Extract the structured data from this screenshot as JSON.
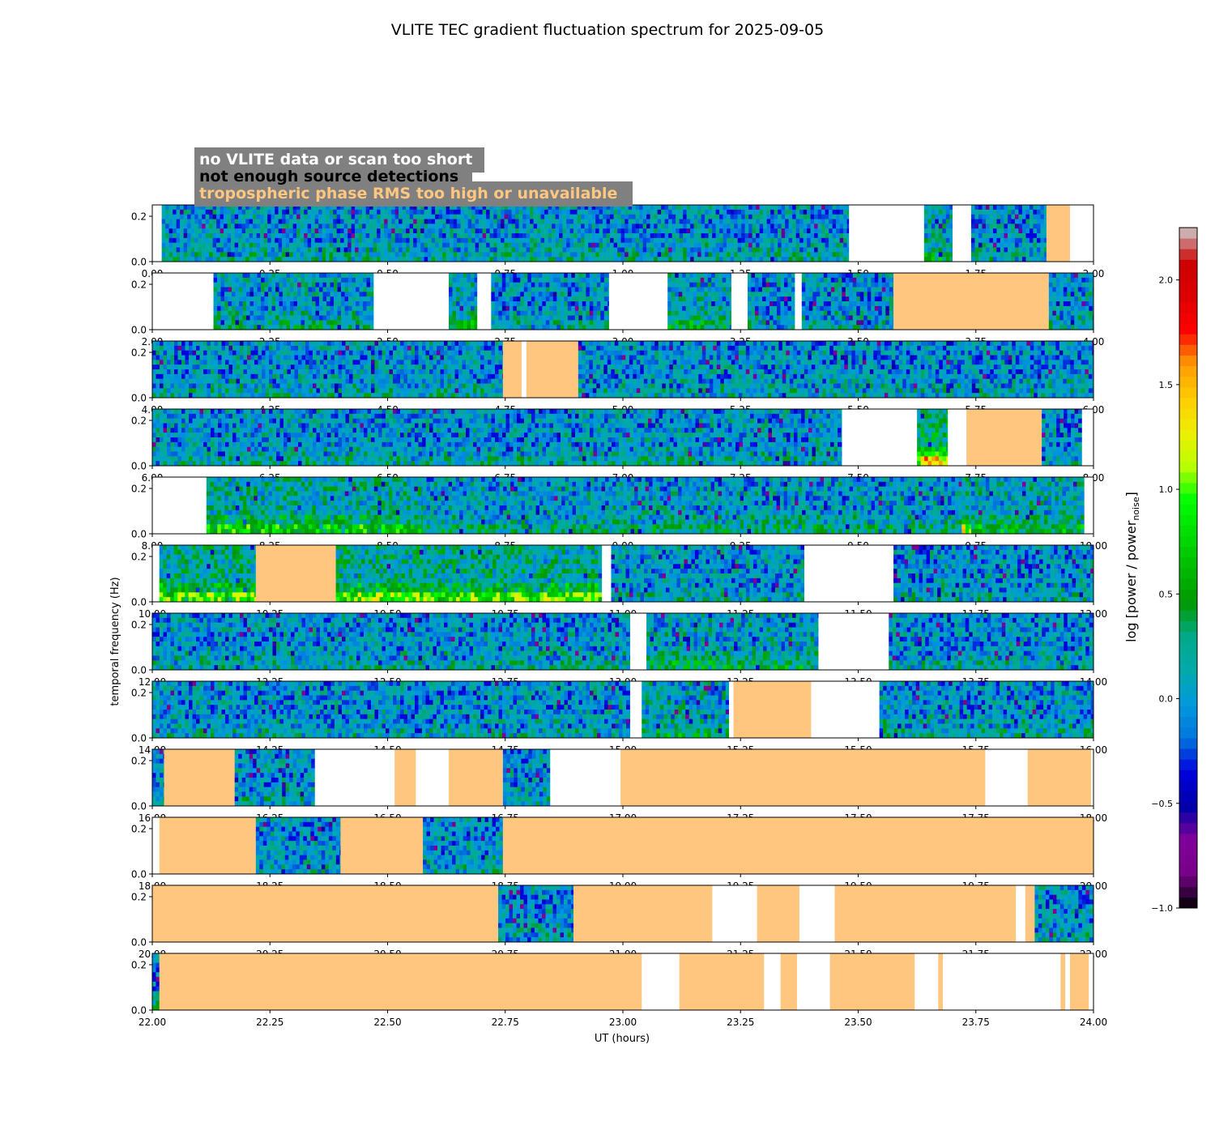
{
  "chart_data": {
    "type": "heatmap",
    "title": "VLITE TEC gradient fluctuation spectrum for 2025-09-05",
    "xlabel": "UT (hours)",
    "ylabel": "temporal frequency (Hz)",
    "ylim": [
      0,
      0.25
    ],
    "yticks": [
      "0.0",
      "0.2"
    ],
    "colorbar": {
      "label": "log [power / power",
      "label_sub": "noise",
      "label_end": "]",
      "range": [
        -1.0,
        2.25
      ],
      "ticks": [
        "−1.0",
        "−0.5",
        "0.0",
        "0.5",
        "1.0",
        "1.5",
        "2.0"
      ],
      "tick_values": [
        -1.0,
        -0.5,
        0.0,
        0.5,
        1.0,
        1.5,
        2.0
      ],
      "colormap": "nipy_spectral-like (black-purple-blue-cyan-green-yellow-red-grey)"
    },
    "legend": {
      "placement": "top-left",
      "box_color": "#808080",
      "entries": [
        {
          "text": "no VLITE data or scan too short",
          "color": "#ffffff",
          "meaning": "white"
        },
        {
          "text": "not enough source detections",
          "color": "#000000",
          "meaning": "black"
        },
        {
          "text": "tropospheric phase RMS too high or unavailable",
          "color": "#ffc680",
          "meaning": "orange"
        }
      ]
    },
    "flag_colors": {
      "no_data": "#ffffff",
      "tropo": "#ffc680"
    },
    "panels": [
      {
        "range": [
          0,
          2
        ],
        "ticks": [
          "0.00",
          "0.25",
          "0.50",
          "0.75",
          "1.00",
          "1.25",
          "1.50",
          "1.75",
          "2.00"
        ],
        "segments": [
          [
            0,
            0.02,
            "none"
          ],
          [
            0.02,
            1.48,
            "data",
            0.1
          ],
          [
            1.48,
            1.64,
            "none"
          ],
          [
            1.64,
            1.7,
            "data",
            0.22
          ],
          [
            1.7,
            1.74,
            "none"
          ],
          [
            1.74,
            1.9,
            "data",
            0.08
          ],
          [
            1.9,
            1.95,
            "tropo"
          ],
          [
            1.95,
            2,
            "none"
          ]
        ]
      },
      {
        "range": [
          2,
          4
        ],
        "ticks": [
          "2.00",
          "2.25",
          "2.50",
          "2.75",
          "3.00",
          "3.25",
          "3.50",
          "3.75",
          "4.00"
        ],
        "segments": [
          [
            2,
            2.13,
            "none"
          ],
          [
            2.13,
            2.47,
            "data",
            0.15
          ],
          [
            2.47,
            2.63,
            "none"
          ],
          [
            2.63,
            2.69,
            "data",
            0.22
          ],
          [
            2.69,
            2.72,
            "none"
          ],
          [
            2.72,
            2.97,
            "data",
            0.1
          ],
          [
            2.97,
            3.095,
            "none"
          ],
          [
            3.095,
            3.23,
            "data",
            0.2
          ],
          [
            3.23,
            3.265,
            "none"
          ],
          [
            3.265,
            3.365,
            "data",
            0.06
          ],
          [
            3.365,
            3.38,
            "none"
          ],
          [
            3.38,
            3.575,
            "data",
            0.08
          ],
          [
            3.575,
            3.905,
            "tropo"
          ],
          [
            3.905,
            4,
            "data",
            0.1
          ]
        ]
      },
      {
        "range": [
          4,
          6
        ],
        "ticks": [
          "4.00",
          "4.25",
          "4.50",
          "4.75",
          "5.00",
          "5.25",
          "5.50",
          "5.75",
          "6.00"
        ],
        "segments": [
          [
            4,
            4.745,
            "data",
            0.1
          ],
          [
            4.745,
            4.785,
            "tropo"
          ],
          [
            4.785,
            4.795,
            "none"
          ],
          [
            4.795,
            4.905,
            "tropo"
          ],
          [
            4.905,
            6,
            "data",
            0.08
          ]
        ]
      },
      {
        "range": [
          6,
          8
        ],
        "ticks": [
          "6.00",
          "6.25",
          "6.50",
          "6.75",
          "7.00",
          "7.25",
          "7.50",
          "7.75",
          "8.00"
        ],
        "segments": [
          [
            6,
            7.465,
            "data",
            0.1
          ],
          [
            7.465,
            7.625,
            "none"
          ],
          [
            7.625,
            7.69,
            "data",
            0.65
          ],
          [
            7.69,
            7.73,
            "none"
          ],
          [
            7.73,
            7.89,
            "tropo"
          ],
          [
            7.89,
            7.975,
            "data",
            0.08
          ],
          [
            7.975,
            8,
            "none"
          ]
        ]
      },
      {
        "range": [
          8,
          10
        ],
        "ticks": [
          "8.00",
          "8.25",
          "8.50",
          "8.75",
          "9.00",
          "9.25",
          "9.50",
          "9.75",
          "10.00"
        ],
        "segments": [
          [
            8,
            8.115,
            "none"
          ],
          [
            8.115,
            8.575,
            "data",
            0.35
          ],
          [
            8.575,
            9.72,
            "data",
            0.15
          ],
          [
            9.72,
            9.74,
            "data",
            0.55
          ],
          [
            9.74,
            9.98,
            "data",
            0.25
          ],
          [
            9.98,
            10,
            "none"
          ]
        ]
      },
      {
        "range": [
          10,
          12
        ],
        "ticks": [
          "10.00",
          "10.25",
          "10.50",
          "10.75",
          "11.00",
          "11.25",
          "11.50",
          "11.75",
          "12.00"
        ],
        "segments": [
          [
            10,
            10.015,
            "none"
          ],
          [
            10.015,
            10.22,
            "data",
            0.45
          ],
          [
            10.22,
            10.39,
            "tropo"
          ],
          [
            10.39,
            10.955,
            "data",
            0.45
          ],
          [
            10.955,
            10.975,
            "none"
          ],
          [
            10.975,
            11.385,
            "data",
            0.08
          ],
          [
            11.385,
            11.575,
            "none"
          ],
          [
            11.575,
            12,
            "data",
            0.08
          ]
        ]
      },
      {
        "range": [
          12,
          14
        ],
        "ticks": [
          "12.00",
          "12.25",
          "12.50",
          "12.75",
          "13.00",
          "13.25",
          "13.50",
          "13.75",
          "14.00"
        ],
        "segments": [
          [
            12,
            13.015,
            "data",
            0.1
          ],
          [
            13.015,
            13.05,
            "none"
          ],
          [
            13.05,
            13.415,
            "data",
            0.2
          ],
          [
            13.415,
            13.565,
            "none"
          ],
          [
            13.565,
            14,
            "data",
            0.08
          ]
        ]
      },
      {
        "range": [
          14,
          16
        ],
        "ticks": [
          "14.00",
          "14.25",
          "14.50",
          "14.75",
          "15.00",
          "15.25",
          "15.50",
          "15.75",
          "16.00"
        ],
        "segments": [
          [
            14,
            15.015,
            "data",
            0.08
          ],
          [
            15.015,
            15.04,
            "none"
          ],
          [
            15.04,
            15.225,
            "data",
            0.2
          ],
          [
            15.225,
            15.235,
            "none"
          ],
          [
            15.235,
            15.4,
            "tropo"
          ],
          [
            15.4,
            15.545,
            "none"
          ],
          [
            15.545,
            16,
            "data",
            0.1
          ]
        ]
      },
      {
        "range": [
          16,
          18
        ],
        "ticks": [
          "16.00",
          "16.25",
          "16.50",
          "16.75",
          "17.00",
          "17.25",
          "17.50",
          "17.75",
          "18.00"
        ],
        "segments": [
          [
            16,
            16.025,
            "data",
            0.1
          ],
          [
            16.025,
            16.175,
            "tropo"
          ],
          [
            16.175,
            16.345,
            "data",
            0.08
          ],
          [
            16.345,
            16.515,
            "none"
          ],
          [
            16.515,
            16.56,
            "tropo"
          ],
          [
            16.56,
            16.63,
            "none"
          ],
          [
            16.63,
            16.745,
            "tropo"
          ],
          [
            16.745,
            16.845,
            "data",
            0.08
          ],
          [
            16.845,
            16.995,
            "none"
          ],
          [
            16.995,
            17.77,
            "tropo"
          ],
          [
            17.77,
            17.86,
            "none"
          ],
          [
            17.86,
            17.995,
            "tropo"
          ],
          [
            17.995,
            18,
            "none"
          ]
        ]
      },
      {
        "range": [
          18,
          20
        ],
        "ticks": [
          "18.00",
          "18.25",
          "18.50",
          "18.75",
          "19.00",
          "19.25",
          "19.50",
          "19.75",
          "20.00"
        ],
        "segments": [
          [
            18,
            18.015,
            "none"
          ],
          [
            18.015,
            18.22,
            "tropo"
          ],
          [
            18.22,
            18.4,
            "data",
            0.08
          ],
          [
            18.4,
            18.575,
            "tropo"
          ],
          [
            18.575,
            18.745,
            "data",
            0.08
          ],
          [
            18.745,
            20,
            "tropo"
          ]
        ]
      },
      {
        "range": [
          20,
          22
        ],
        "ticks": [
          "20.00",
          "20.25",
          "20.50",
          "20.75",
          "21.00",
          "21.25",
          "21.50",
          "21.75",
          "22.00"
        ],
        "segments": [
          [
            20,
            20.735,
            "tropo"
          ],
          [
            20.735,
            20.895,
            "data",
            0.06
          ],
          [
            20.895,
            21.19,
            "tropo"
          ],
          [
            21.19,
            21.285,
            "none"
          ],
          [
            21.285,
            21.375,
            "tropo"
          ],
          [
            21.375,
            21.45,
            "none"
          ],
          [
            21.45,
            21.835,
            "tropo"
          ],
          [
            21.835,
            21.855,
            "none"
          ],
          [
            21.855,
            21.875,
            "tropo"
          ],
          [
            21.875,
            22,
            "data",
            0.08
          ]
        ]
      },
      {
        "range": [
          22,
          24
        ],
        "ticks": [
          "22.00",
          "22.25",
          "22.50",
          "22.75",
          "23.00",
          "23.25",
          "23.50",
          "23.75",
          "24.00"
        ],
        "segments": [
          [
            22,
            22.015,
            "data",
            0.1
          ],
          [
            22.015,
            23.04,
            "tropo"
          ],
          [
            23.04,
            23.12,
            "none"
          ],
          [
            23.12,
            23.3,
            "tropo"
          ],
          [
            23.3,
            23.335,
            "none"
          ],
          [
            23.335,
            23.37,
            "tropo"
          ],
          [
            23.37,
            23.44,
            "none"
          ],
          [
            23.44,
            23.62,
            "tropo"
          ],
          [
            23.62,
            23.67,
            "none"
          ],
          [
            23.67,
            23.68,
            "tropo"
          ],
          [
            23.68,
            23.93,
            "none"
          ],
          [
            23.93,
            23.94,
            "tropo"
          ],
          [
            23.94,
            23.95,
            "none"
          ],
          [
            23.95,
            23.99,
            "tropo"
          ],
          [
            23.99,
            24,
            "none"
          ]
        ]
      }
    ]
  }
}
